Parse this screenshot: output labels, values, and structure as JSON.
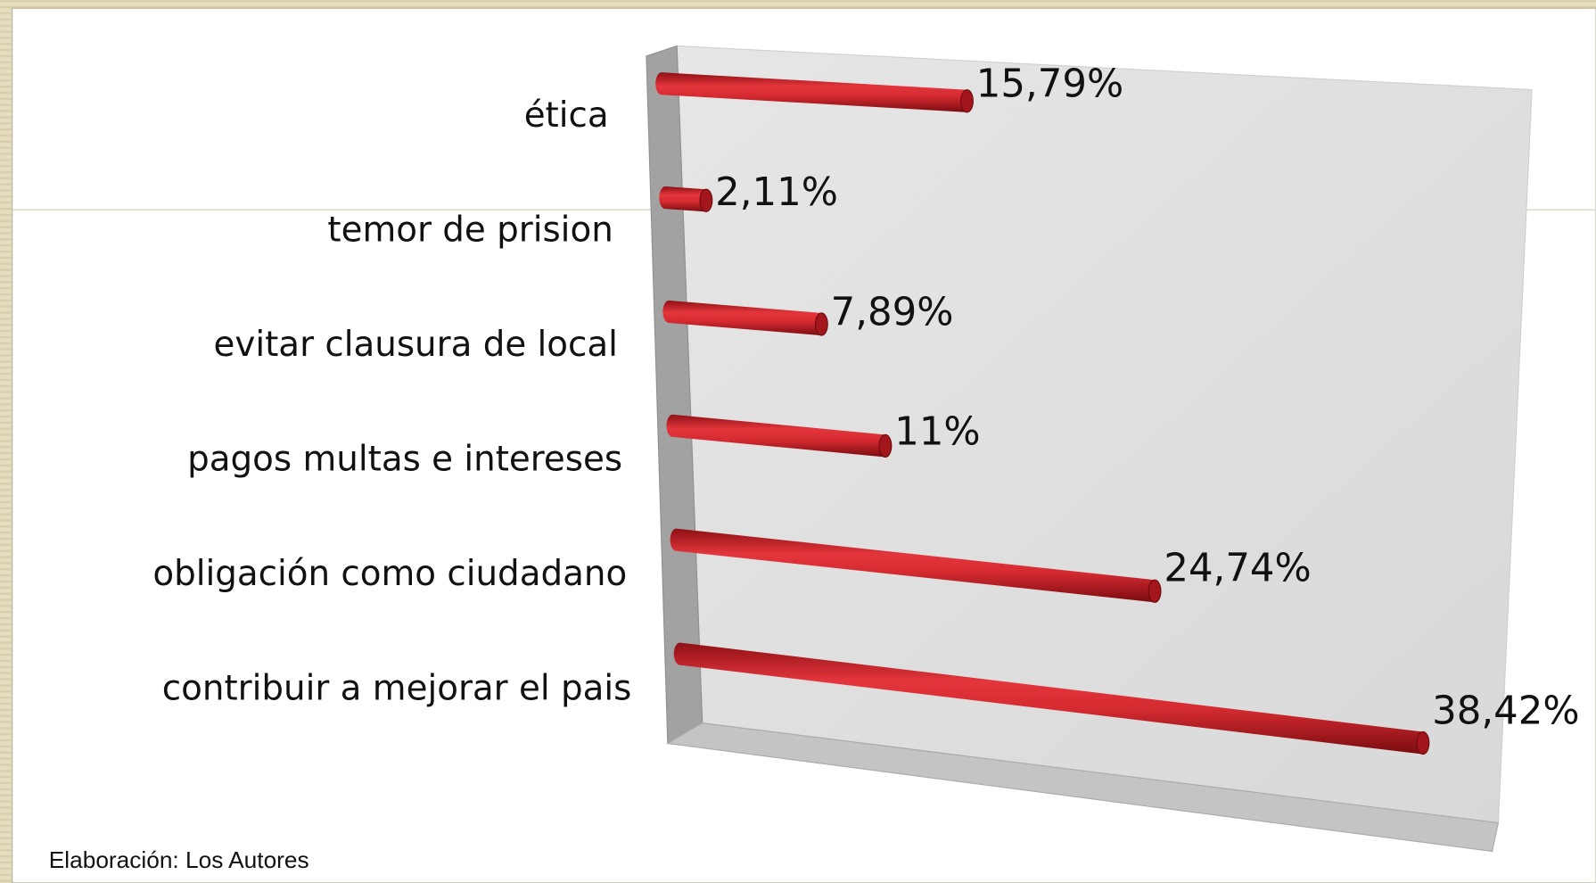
{
  "chart_data": {
    "type": "bar3d",
    "categories": [
      "ética",
      "temor de prision",
      "evitar clausura de local",
      "pagos multas e intereses",
      "obligación como ciudadano",
      "contribuir a mejorar el pais"
    ],
    "values": [
      15.79,
      2.11,
      7.89,
      11,
      24.74,
      38.42
    ],
    "value_labels": [
      "15,79%",
      "2,11%",
      "7,89%",
      "11%",
      "24,74%",
      "38,42%"
    ],
    "color": "#d42a30",
    "xlim": [
      0,
      43
    ],
    "source": "Elaboración: Los Autores"
  }
}
